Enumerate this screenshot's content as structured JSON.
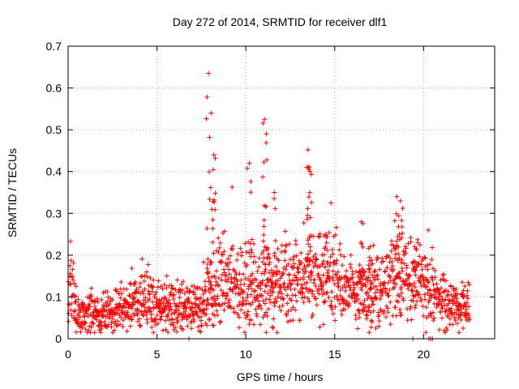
{
  "chart_data": {
    "type": "scatter",
    "title": "Day 272 of 2014, SRMTID for receiver dlf1",
    "xlabel": "GPS time / hours",
    "ylabel": "SRMTID / TECUs",
    "xlim": [
      0,
      24
    ],
    "ylim": [
      0,
      0.7
    ],
    "xticks": [
      0,
      5,
      10,
      15,
      20
    ],
    "yticks": [
      0,
      0.1,
      0.2,
      0.3,
      0.4,
      0.5,
      0.6,
      0.7
    ],
    "xtick_labels": [
      "0",
      "5",
      "10",
      "15",
      "20"
    ],
    "ytick_labels": [
      "0",
      "0.1",
      "0.2",
      "0.3",
      "0.4",
      "0.5",
      "0.6",
      "0.7"
    ],
    "grid": true,
    "marker": "+",
    "color": "#ff0000",
    "series": [
      {
        "name": "SRMTID",
        "time_range_hours": [
          0,
          22.6
        ],
        "baseline_profile": [
          [
            0.0,
            0.08
          ],
          [
            0.1,
            0.15
          ],
          [
            0.5,
            0.05
          ],
          [
            1.0,
            0.06
          ],
          [
            2.0,
            0.06
          ],
          [
            3.0,
            0.07
          ],
          [
            4.0,
            0.09
          ],
          [
            5.0,
            0.08
          ],
          [
            6.0,
            0.08
          ],
          [
            7.0,
            0.07
          ],
          [
            7.7,
            0.09
          ],
          [
            8.5,
            0.13
          ],
          [
            9.5,
            0.14
          ],
          [
            10.5,
            0.12
          ],
          [
            11.5,
            0.12
          ],
          [
            12.5,
            0.14
          ],
          [
            13.5,
            0.14
          ],
          [
            14.5,
            0.15
          ],
          [
            15.5,
            0.12
          ],
          [
            16.5,
            0.1
          ],
          [
            17.5,
            0.12
          ],
          [
            18.5,
            0.14
          ],
          [
            19.5,
            0.13
          ],
          [
            20.3,
            0.13
          ],
          [
            21.0,
            0.09
          ],
          [
            22.0,
            0.07
          ],
          [
            22.6,
            0.08
          ]
        ],
        "peaks": [
          {
            "t": 7.9,
            "v": 0.635
          },
          {
            "t": 8.05,
            "v": 0.54
          },
          {
            "t": 8.2,
            "v": 0.44
          },
          {
            "t": 10.2,
            "v": 0.42
          },
          {
            "t": 11.05,
            "v": 0.525
          },
          {
            "t": 11.15,
            "v": 0.49
          },
          {
            "t": 11.6,
            "v": 0.35
          },
          {
            "t": 13.5,
            "v": 0.452
          },
          {
            "t": 13.6,
            "v": 0.4
          },
          {
            "t": 14.5,
            "v": 0.25
          },
          {
            "t": 16.5,
            "v": 0.28
          },
          {
            "t": 17.0,
            "v": 0.22
          },
          {
            "t": 18.5,
            "v": 0.34
          },
          {
            "t": 18.7,
            "v": 0.33
          },
          {
            "t": 19.5,
            "v": 0.22
          }
        ],
        "zero_points": [
          6.8,
          19.4,
          20.3,
          20.4,
          20.5
        ]
      }
    ]
  }
}
